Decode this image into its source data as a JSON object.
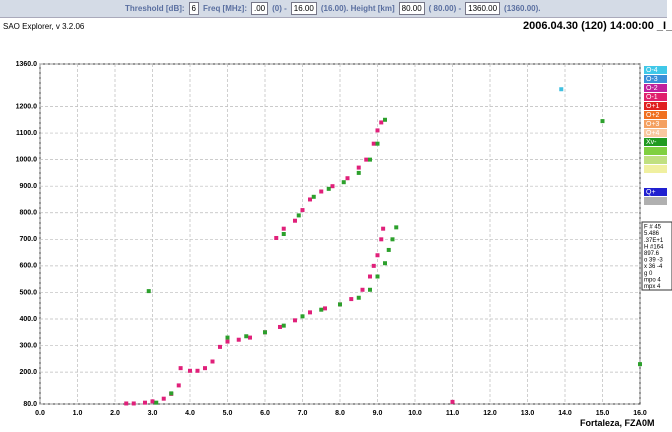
{
  "toolbar": {
    "threshold_label": "Threshold [dB]:",
    "threshold": "6",
    "freq_label": "Freq [MHz]:",
    "freq_min": ".00",
    "freq_min_note": "(0) -",
    "freq_max": "16.00",
    "freq_max_note": "(16.00). Height [km]",
    "height_min": "80.00",
    "height_min_note": "( 80.00) -",
    "height_max": "1360.00",
    "height_max_note": "(1360.00)."
  },
  "header": {
    "app": "SAO Explorer, v 3.2.06",
    "timestamp": "2006.04.30 (120) 14:00:00 _I_"
  },
  "chart_data": {
    "type": "scatter",
    "xlim": [
      0,
      16
    ],
    "ylim": [
      80,
      1360
    ],
    "grid": true,
    "xticks": [
      {
        "value": 0,
        "label": "0.0"
      },
      {
        "value": 1,
        "label": "1.0"
      },
      {
        "value": 2,
        "label": "2.0"
      },
      {
        "value": 3,
        "label": "3.0"
      },
      {
        "value": 4,
        "label": "4.0"
      },
      {
        "value": 5,
        "label": "5.0"
      },
      {
        "value": 6,
        "label": "6.0"
      },
      {
        "value": 7,
        "label": "7.0"
      },
      {
        "value": 8,
        "label": "8.0"
      },
      {
        "value": 9,
        "label": "9.0"
      },
      {
        "value": 10,
        "label": "10.0"
      },
      {
        "value": 11,
        "label": "11.0"
      },
      {
        "value": 12,
        "label": "12.0"
      },
      {
        "value": 13,
        "label": "13.0"
      },
      {
        "value": 14,
        "label": "14.0"
      },
      {
        "value": 15,
        "label": "15.0"
      },
      {
        "value": 16,
        "label": "16.0"
      }
    ],
    "yticks": [
      {
        "value": 80,
        "label": "80.0"
      },
      {
        "value": 200,
        "label": "200.0"
      },
      {
        "value": 300,
        "label": "300.0"
      },
      {
        "value": 400,
        "label": "400.0"
      },
      {
        "value": 500,
        "label": "500.0"
      },
      {
        "value": 600,
        "label": "600.0"
      },
      {
        "value": 700,
        "label": "700.0"
      },
      {
        "value": 800,
        "label": "800.0"
      },
      {
        "value": 900,
        "label": "900.0"
      },
      {
        "value": 1000,
        "label": "1000.0"
      },
      {
        "value": 1100,
        "label": "1100.0"
      },
      {
        "value": 1200,
        "label": "1200.0"
      },
      {
        "value": 1360,
        "label": "1360.0"
      }
    ],
    "series": [
      {
        "color": "#e0207a",
        "x": [
          2.3,
          2.5,
          2.8,
          3.0,
          3.3,
          3.5,
          3.7,
          3.75,
          4.0,
          4.2,
          4.4,
          4.6,
          4.8,
          5.0,
          5.3,
          5.6,
          6.0,
          6.4,
          6.8,
          7.2,
          7.6,
          8.0,
          8.3,
          8.6,
          8.8,
          8.9,
          9.0,
          9.1,
          9.15,
          6.3,
          6.5,
          6.8,
          7.0,
          7.2,
          7.5,
          7.8,
          8.2,
          8.5,
          8.7,
          8.9,
          9.0,
          9.1,
          11.0
        ],
        "y": [
          82,
          82,
          85,
          90,
          100,
          118,
          150,
          215,
          205,
          205,
          215,
          240,
          295,
          315,
          322,
          330,
          350,
          370,
          395,
          425,
          440,
          455,
          475,
          510,
          560,
          600,
          640,
          700,
          740,
          705,
          740,
          770,
          810,
          850,
          880,
          900,
          930,
          970,
          1000,
          1060,
          1110,
          1140,
          88
        ]
      },
      {
        "color": "#2ca02c",
        "x": [
          3.1,
          3.5,
          5.0,
          5.5,
          6.0,
          6.5,
          7.0,
          7.5,
          8.0,
          8.5,
          8.8,
          9.0,
          9.2,
          9.3,
          9.4,
          9.5,
          6.5,
          6.9,
          7.3,
          7.7,
          8.1,
          8.5,
          8.8,
          9.0,
          9.2,
          2.9,
          15.0,
          16.0
        ],
        "y": [
          85,
          120,
          330,
          335,
          350,
          375,
          410,
          435,
          455,
          480,
          510,
          560,
          610,
          660,
          700,
          745,
          720,
          790,
          860,
          890,
          915,
          950,
          1000,
          1060,
          1150,
          505,
          1145,
          230
        ]
      },
      {
        "color": "#40c0e0",
        "x": [
          13.9
        ],
        "y": [
          1265
        ]
      }
    ]
  },
  "legend": [
    {
      "label": "O-4",
      "color": "#40c8e8"
    },
    {
      "label": "O-3",
      "color": "#3a8fd8"
    },
    {
      "label": "O-2",
      "color": "#c0209c"
    },
    {
      "label": "O-1",
      "color": "#e0206c"
    },
    {
      "label": "O+1",
      "color": "#e02020"
    },
    {
      "label": "O+2",
      "color": "#f07020"
    },
    {
      "label": "O+3",
      "color": "#f4a060"
    },
    {
      "label": "O+4",
      "color": "#f8c8a0"
    },
    {
      "label": "Xv-",
      "color": "#209a20"
    },
    {
      "label": null,
      "color": "#80d040"
    },
    {
      "label": null,
      "color": "#c0e080"
    },
    {
      "label": null,
      "color": "#f0f0a0"
    },
    {
      "label": "Q+",
      "color": "#2020d0"
    },
    {
      "label": null,
      "color": "#b0b0b0"
    }
  ],
  "info": [
    "F # 45",
    "5.486",
    ".37E+1",
    "H #164",
    "897.6",
    "o 39 -3",
    "x 36 -4",
    "g 0",
    "mpo 4",
    "mpx 4"
  ],
  "station": "Fortaleza, FZA0M"
}
